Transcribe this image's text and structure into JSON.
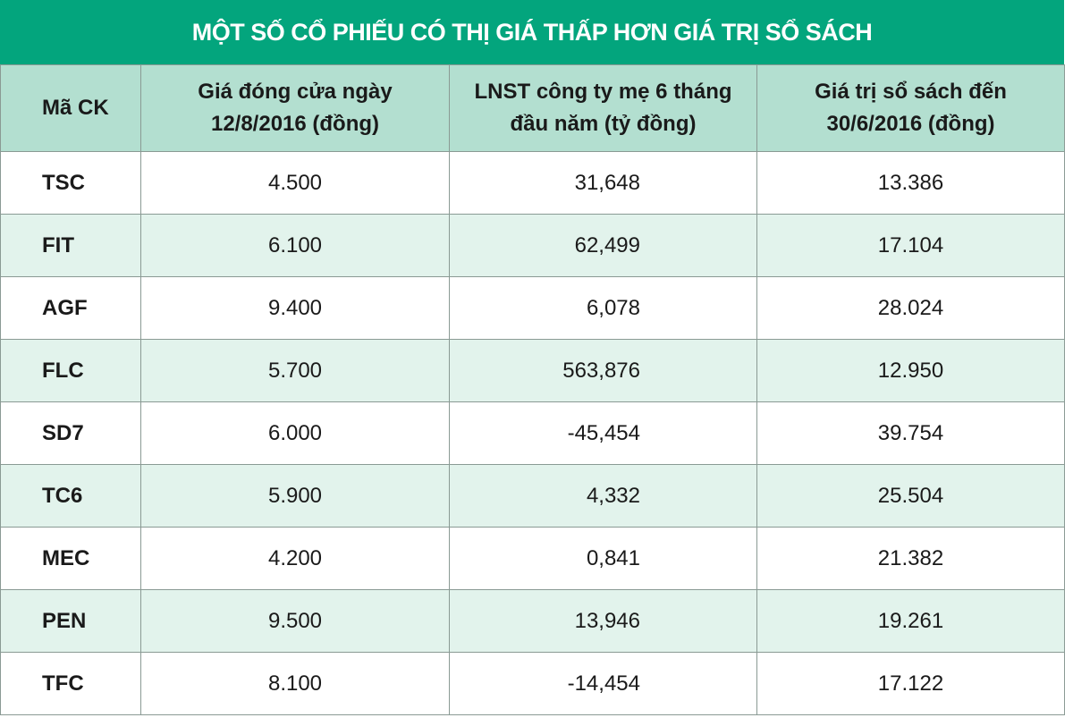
{
  "title": "MỘT SỐ CỔ PHIẾU CÓ THỊ GIÁ THẤP HƠN GIÁ TRỊ SỔ SÁCH",
  "table": {
    "header": [
      [
        "Mã CK"
      ],
      [
        "Giá đóng cửa ngày",
        "12/8/2016 (đồng)"
      ],
      [
        "LNST công ty mẹ 6 tháng",
        "đầu năm (tỷ đồng)"
      ],
      [
        "Giá trị sổ sách đến",
        "30/6/2016 (đồng)"
      ]
    ],
    "rows": [
      [
        "TSC",
        "4.500",
        "31,648",
        "13.386"
      ],
      [
        "FIT",
        "6.100",
        "62,499",
        "17.104"
      ],
      [
        "AGF",
        "9.400",
        "6,078",
        "28.024"
      ],
      [
        "FLC",
        "5.700",
        "563,876",
        "12.950"
      ],
      [
        "SD7",
        "6.000",
        "-45,454",
        "39.754"
      ],
      [
        "TC6",
        "5.900",
        "4,332",
        "25.504"
      ],
      [
        "MEC",
        "4.200",
        "0,841",
        "21.382"
      ],
      [
        "PEN",
        "9.500",
        "13,946",
        "19.261"
      ],
      [
        "TFC",
        "8.100",
        "-14,454",
        "17.122"
      ]
    ]
  }
}
